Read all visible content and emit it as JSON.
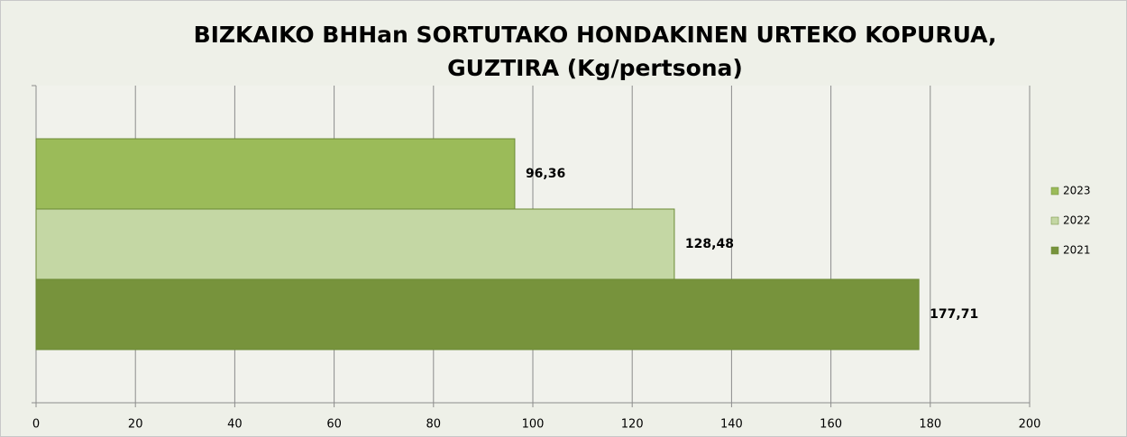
{
  "chart_data": {
    "type": "bar",
    "orientation": "horizontal",
    "title": [
      "BIZKAIKO BHHan SORTUTAKO HONDAKINEN URTEKO KOPURUA,",
      "GUZTIRA (Kg/pertsona)"
    ],
    "categories": [
      null
    ],
    "series": [
      {
        "name": "2023",
        "color": "#9bbb59",
        "values": [
          96.36
        ],
        "value_labels": [
          "96,36"
        ]
      },
      {
        "name": "2022",
        "color": "#c4d7a4",
        "values": [
          128.48
        ],
        "value_labels": [
          "128,48"
        ]
      },
      {
        "name": "2021",
        "color": "#77933c",
        "values": [
          177.71
        ],
        "value_labels": [
          "177,71"
        ]
      }
    ],
    "xlim": [
      0,
      200
    ],
    "xticks": [
      0,
      20,
      40,
      60,
      80,
      100,
      120,
      140,
      160,
      180,
      200
    ],
    "grid": true,
    "legend": "right"
  }
}
